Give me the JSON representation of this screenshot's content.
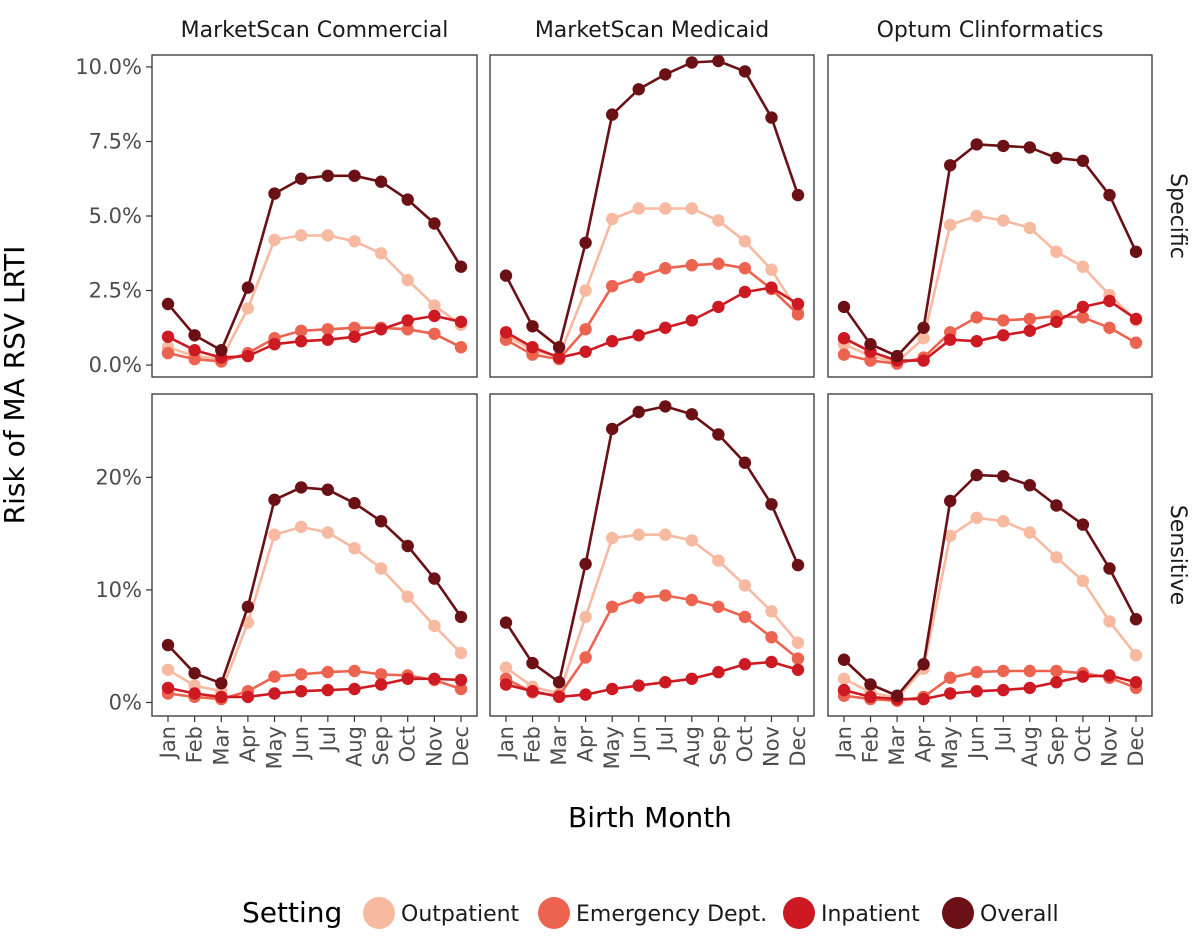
{
  "chart_data": {
    "type": "line",
    "ylabel": "Risk of MA RSV LRTI",
    "xlabel": "Birth Month",
    "legend": {
      "title": "Setting",
      "placement": "bottom",
      "entries": [
        "Outpatient",
        "Emergency Dept.",
        "Inpatient",
        "Overall"
      ]
    },
    "colors": {
      "Outpatient": "#f7b9a0",
      "Emergency Dept.": "#ec6450",
      "Inpatient": "#cd1a22",
      "Overall": "#6b1116"
    },
    "columns": [
      "MarketScan Commercial",
      "MarketScan Medicaid",
      "Optum Clinformatics"
    ],
    "rows": [
      "Specific",
      "Sensitive"
    ],
    "months": [
      "Jan",
      "Feb",
      "Mar",
      "Apr",
      "May",
      "Jun",
      "Jul",
      "Aug",
      "Sep",
      "Oct",
      "Nov",
      "Dec"
    ],
    "row_axes": [
      {
        "row": "Specific",
        "ylim": [
          -0.4,
          10.4
        ],
        "ticks": [
          0,
          2.5,
          5,
          7.5,
          10
        ],
        "tick_labels": [
          "0.0%",
          "2.5%",
          "5.0%",
          "7.5%",
          "10.0%"
        ]
      },
      {
        "row": "Sensitive",
        "ylim": [
          -1.2,
          27.4
        ],
        "ticks": [
          0,
          10,
          20
        ],
        "tick_labels": [
          "0%",
          "10%",
          "20%"
        ]
      }
    ],
    "grid": false,
    "panels": [
      {
        "column": "MarketScan Commercial",
        "row": "Specific",
        "series": [
          {
            "name": "Outpatient",
            "values": [
              0.6,
              0.3,
              0.2,
              1.9,
              4.2,
              4.35,
              4.35,
              4.15,
              3.75,
              2.85,
              2.0,
              1.35
            ]
          },
          {
            "name": "Emergency Dept.",
            "values": [
              0.4,
              0.2,
              0.12,
              0.4,
              0.9,
              1.15,
              1.2,
              1.25,
              1.25,
              1.2,
              1.05,
              0.6
            ]
          },
          {
            "name": "Inpatient",
            "values": [
              0.95,
              0.5,
              0.25,
              0.3,
              0.7,
              0.8,
              0.85,
              0.95,
              1.2,
              1.5,
              1.65,
              1.45
            ]
          },
          {
            "name": "Overall",
            "values": [
              2.05,
              1.0,
              0.5,
              2.6,
              5.75,
              6.25,
              6.35,
              6.35,
              6.15,
              5.55,
              4.75,
              3.3
            ]
          }
        ]
      },
      {
        "column": "MarketScan Medicaid",
        "row": "Specific",
        "series": [
          {
            "name": "Outpatient",
            "values": [
              1.0,
              0.5,
              0.3,
              2.5,
              4.9,
              5.25,
              5.25,
              5.25,
              4.85,
              4.15,
              3.2,
              1.8
            ]
          },
          {
            "name": "Emergency Dept.",
            "values": [
              0.85,
              0.35,
              0.2,
              1.2,
              2.65,
              2.95,
              3.25,
              3.35,
              3.4,
              3.25,
              2.55,
              1.7
            ]
          },
          {
            "name": "Inpatient",
            "values": [
              1.1,
              0.6,
              0.25,
              0.45,
              0.8,
              1.0,
              1.25,
              1.5,
              1.95,
              2.45,
              2.6,
              2.05
            ]
          },
          {
            "name": "Overall",
            "values": [
              3.0,
              1.3,
              0.6,
              4.1,
              8.4,
              9.25,
              9.75,
              10.15,
              10.2,
              9.85,
              8.3,
              5.7
            ]
          }
        ]
      },
      {
        "column": "Optum Clinformatics",
        "row": "Specific",
        "series": [
          {
            "name": "Outpatient",
            "values": [
              0.7,
              0.3,
              0.1,
              0.9,
              4.7,
              5.0,
              4.85,
              4.6,
              3.8,
              3.3,
              2.35,
              1.5
            ]
          },
          {
            "name": "Emergency Dept.",
            "values": [
              0.35,
              0.15,
              0.05,
              0.25,
              1.1,
              1.6,
              1.5,
              1.55,
              1.65,
              1.6,
              1.25,
              0.75
            ]
          },
          {
            "name": "Inpatient",
            "values": [
              0.9,
              0.45,
              0.15,
              0.15,
              0.85,
              0.8,
              1.0,
              1.15,
              1.45,
              1.95,
              2.15,
              1.55
            ]
          },
          {
            "name": "Overall",
            "values": [
              1.95,
              0.7,
              0.3,
              1.25,
              6.7,
              7.4,
              7.35,
              7.3,
              6.95,
              6.85,
              5.7,
              3.8
            ]
          }
        ]
      },
      {
        "column": "MarketScan Commercial",
        "row": "Sensitive",
        "series": [
          {
            "name": "Outpatient",
            "values": [
              2.9,
              1.5,
              1.0,
              7.1,
              14.9,
              15.6,
              15.1,
              13.7,
              11.9,
              9.4,
              6.8,
              4.4
            ]
          },
          {
            "name": "Emergency Dept.",
            "values": [
              0.8,
              0.5,
              0.3,
              1.0,
              2.3,
              2.5,
              2.7,
              2.8,
              2.5,
              2.4,
              2.0,
              1.2
            ]
          },
          {
            "name": "Inpatient",
            "values": [
              1.3,
              0.8,
              0.5,
              0.5,
              0.8,
              1.0,
              1.1,
              1.2,
              1.6,
              2.1,
              2.1,
              2.0
            ]
          },
          {
            "name": "Overall",
            "values": [
              5.1,
              2.6,
              1.7,
              8.5,
              18.0,
              19.1,
              18.9,
              17.7,
              16.1,
              13.9,
              11.0,
              7.6
            ]
          }
        ]
      },
      {
        "column": "MarketScan Medicaid",
        "row": "Sensitive",
        "series": [
          {
            "name": "Outpatient",
            "values": [
              3.1,
              1.4,
              0.8,
              7.6,
              14.6,
              14.9,
              14.9,
              14.4,
              12.6,
              10.4,
              8.1,
              5.3
            ]
          },
          {
            "name": "Emergency Dept.",
            "values": [
              2.1,
              0.9,
              0.6,
              4.0,
              8.5,
              9.3,
              9.5,
              9.1,
              8.5,
              7.6,
              5.8,
              3.9
            ]
          },
          {
            "name": "Inpatient",
            "values": [
              1.6,
              1.0,
              0.5,
              0.7,
              1.2,
              1.5,
              1.8,
              2.1,
              2.7,
              3.4,
              3.6,
              2.9
            ]
          },
          {
            "name": "Overall",
            "values": [
              7.1,
              3.5,
              1.8,
              12.3,
              24.3,
              25.8,
              26.3,
              25.6,
              23.8,
              21.3,
              17.6,
              12.2
            ]
          }
        ]
      },
      {
        "column": "Optum Clinformatics",
        "row": "Sensitive",
        "series": [
          {
            "name": "Outpatient",
            "values": [
              2.1,
              0.9,
              0.4,
              3.0,
              14.8,
              16.4,
              16.1,
              15.1,
              12.9,
              10.8,
              7.2,
              4.2
            ]
          },
          {
            "name": "Emergency Dept.",
            "values": [
              0.6,
              0.3,
              0.15,
              0.5,
              2.2,
              2.7,
              2.8,
              2.8,
              2.8,
              2.6,
              2.2,
              1.3
            ]
          },
          {
            "name": "Inpatient",
            "values": [
              1.1,
              0.5,
              0.3,
              0.3,
              0.8,
              1.0,
              1.1,
              1.3,
              1.8,
              2.3,
              2.4,
              1.8
            ]
          },
          {
            "name": "Overall",
            "values": [
              3.8,
              1.6,
              0.6,
              3.4,
              17.9,
              20.2,
              20.1,
              19.3,
              17.5,
              15.8,
              11.9,
              7.4
            ]
          }
        ]
      }
    ]
  }
}
